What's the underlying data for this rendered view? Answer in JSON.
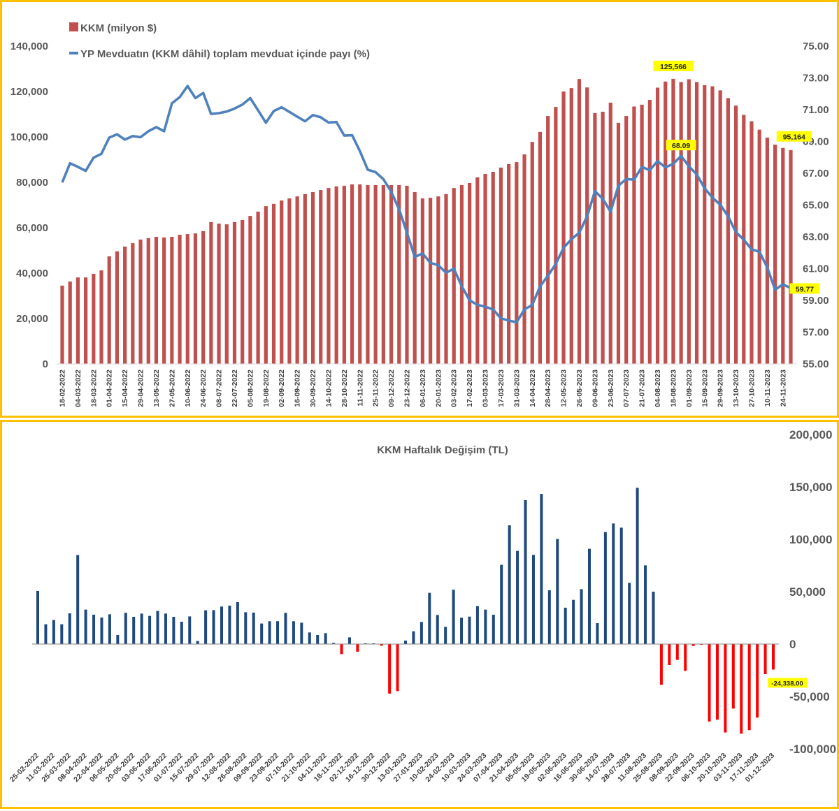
{
  "chart_data": [
    {
      "type": "bar+line",
      "title": "",
      "legend": {
        "placement": "top-left",
        "entries": [
          {
            "label": "KKM (milyon $)",
            "kind": "bar",
            "color": "#C0504D"
          },
          {
            "label": "YP Mevduatın (KKM dâhil) toplam mevduat içinde payı (%)",
            "kind": "line",
            "color": "#4F81BD"
          }
        ]
      },
      "left_axis": {
        "ticks": [
          "0",
          "20,000",
          "40,000",
          "60,000",
          "80,000",
          "100,000",
          "120,000",
          "140,000"
        ],
        "ylim": [
          0,
          140000
        ]
      },
      "right_axis": {
        "ticks": [
          "55.00",
          "57.00",
          "59.00",
          "61.00",
          "63.00",
          "65.00",
          "67.00",
          "69.00",
          "71.00",
          "73.00",
          "75.00"
        ],
        "ylim": [
          55,
          75
        ]
      },
      "x_labels": [
        "18-02-2022",
        "04-03-2022",
        "18-03-2022",
        "01-04-2022",
        "15-04-2022",
        "29-04-2022",
        "13-05-2022",
        "27-05-2022",
        "10-06-2022",
        "24-06-2022",
        "08-07-2022",
        "22-07-2022",
        "05-08-2022",
        "19-08-2022",
        "02-09-2022",
        "16-09-2022",
        "30-09-2022",
        "14-10-2022",
        "28-10-2022",
        "11-11-2022",
        "25-11-2022",
        "09-12-2022",
        "23-12-2022",
        "06-01-2023",
        "20-01-2023",
        "03-02-2023",
        "17-02-2023",
        "03-03-2023",
        "17-03-2023",
        "31-03-2023",
        "14-04-2023",
        "28-04-2023",
        "12-05-2023",
        "26-05-2023",
        "09-06-2023",
        "23-06-2023",
        "07-07-2023",
        "21-07-2023",
        "04-08-2023",
        "18-08-2023",
        "01-09-2023",
        "15-09-2023",
        "29-09-2023",
        "13-10-2023",
        "27-10-2023",
        "10-11-2023",
        "24-11-2023"
      ],
      "series": [
        {
          "name": "KKM (milyon $)",
          "axis": "left",
          "values": [
            34500,
            36300,
            38100,
            38100,
            39700,
            41200,
            47400,
            49600,
            51700,
            53200,
            54800,
            55400,
            56000,
            55700,
            56000,
            56900,
            57200,
            57500,
            58500,
            62500,
            61800,
            61500,
            62500,
            63400,
            65200,
            67100,
            69500,
            70500,
            72000,
            72900,
            73800,
            74800,
            75700,
            76600,
            77500,
            78200,
            78500,
            79100,
            79100,
            78800,
            78800,
            78800,
            78800,
            78800,
            78500,
            75700,
            72900,
            73200,
            73800,
            74800,
            77500,
            78800,
            79700,
            82200,
            83700,
            84600,
            86500,
            88000,
            88900,
            92300,
            97800,
            102200,
            109200,
            113200,
            120000,
            121500,
            125500,
            121800,
            110500,
            111100,
            115100,
            106200,
            109200,
            113400,
            114200,
            116300,
            121700,
            124400,
            125566,
            124200,
            125400,
            124200,
            122800,
            122300,
            120500,
            117100,
            113800,
            109700,
            106900,
            103200,
            99700,
            96600,
            95164,
            94200
          ]
        },
        {
          "name": "YP Mevduatın (KKM dâhil) toplam mevduat içinde payı (%)",
          "axis": "right",
          "values": [
            66.42,
            67.63,
            67.4,
            67.15,
            67.98,
            68.22,
            69.24,
            69.45,
            69.12,
            69.34,
            69.27,
            69.64,
            69.9,
            69.64,
            71.4,
            71.79,
            72.49,
            71.73,
            72.05,
            70.73,
            70.78,
            70.88,
            71.07,
            71.32,
            71.73,
            70.96,
            70.18,
            70.91,
            71.15,
            70.86,
            70.56,
            70.27,
            70.66,
            70.52,
            70.19,
            70.22,
            69.37,
            69.39,
            68.39,
            67.22,
            67.07,
            66.62,
            65.83,
            64.73,
            63.26,
            61.73,
            61.95,
            61.36,
            61.21,
            60.74,
            60.99,
            59.89,
            59.01,
            58.72,
            58.6,
            58.43,
            57.87,
            57.73,
            57.62,
            58.43,
            58.72,
            59.89,
            60.55,
            61.29,
            62.31,
            62.85,
            63.26,
            64.29,
            65.87,
            65.39,
            64.58,
            66.22,
            66.63,
            66.6,
            67.4,
            67.19,
            67.76,
            67.37,
            67.59,
            68.09,
            67.44,
            66.93,
            66.05,
            65.46,
            65.02,
            64.29,
            63.29,
            62.82,
            62.21,
            62.06,
            61.07,
            59.67,
            60.01,
            59.77
          ]
        }
      ],
      "annotations": [
        {
          "text": "125,566",
          "series": 0,
          "index": 78
        },
        {
          "text": "95,164",
          "series": 0,
          "index": 92
        },
        {
          "text": "68.09",
          "series": 1,
          "index": 79
        },
        {
          "text": "59.77",
          "series": 1,
          "index": 93
        }
      ],
      "grid": false
    },
    {
      "type": "bar",
      "title": "KKM Haftalık Değişim (TL)",
      "xlabel": "",
      "ylabel": "",
      "ylim": [
        -100000,
        200000
      ],
      "y_ticks": [
        "-100,000",
        "-50,000",
        "0",
        "50,000",
        "100,000",
        "150,000",
        "200,000"
      ],
      "positive_color": "#1F497D",
      "negative_color": "#FF0000",
      "x_labels": [
        "25-02-2022",
        "11-03-2022",
        "25-03-2022",
        "08-04-2022",
        "22-04-2022",
        "06-05-2022",
        "20-05-2022",
        "03-06-2022",
        "17-06-2022",
        "01-07-2022",
        "15-07-2022",
        "29-07-2022",
        "12-08-2022",
        "26-08-2022",
        "09-09-2022",
        "23-09-2022",
        "07-10-2022",
        "21-10-2022",
        "04-11-2022",
        "18-11-2022",
        "02-12-2022",
        "16-12-2022",
        "30-12-2022",
        "13-01-2023",
        "27-01-2023",
        "10-02-2023",
        "24-02-2023",
        "10-03-2023",
        "24-03-2023",
        "07-04-2023",
        "21-04-2023",
        "05-05-2023",
        "19-05-2023",
        "02-06-2023",
        "16-06-2023",
        "30-06-2023",
        "14-07-2023",
        "28-07-2023",
        "11-08-2023",
        "25-08-2023",
        "08-09-2023",
        "22-09-2023",
        "06-10-2023",
        "20-10-2023",
        "03-11-2023",
        "17-11-2023",
        "01-12-2023"
      ],
      "values": [
        50700,
        18900,
        22900,
        18900,
        29300,
        84900,
        32900,
        28000,
        25300,
        28400,
        8700,
        29800,
        26000,
        29100,
        26900,
        31600,
        29100,
        26000,
        21300,
        26400,
        2900,
        32200,
        32400,
        35800,
        36700,
        40000,
        30400,
        30000,
        19600,
        21800,
        21800,
        29800,
        21800,
        20400,
        11100,
        8700,
        10400,
        1100,
        -9600,
        6400,
        -7300,
        700,
        500,
        -1600,
        -47300,
        -44900,
        3300,
        12200,
        21100,
        48900,
        27800,
        16400,
        51800,
        25100,
        26200,
        36200,
        32900,
        28000,
        75600,
        113300,
        88900,
        137300,
        85100,
        143300,
        51300,
        100200,
        34700,
        42200,
        52400,
        90900,
        20000,
        106900,
        115100,
        111100,
        58400,
        149100,
        75100,
        50000,
        -38900,
        -20000,
        -15100,
        -25600,
        -1800,
        -700,
        -74000,
        -72200,
        -84400,
        -61600,
        -85600,
        -82200,
        -70200,
        -28700,
        -24338
      ],
      "annotations": [
        {
          "text": "-24,338.00",
          "index": 92
        }
      ],
      "grid": false
    }
  ]
}
